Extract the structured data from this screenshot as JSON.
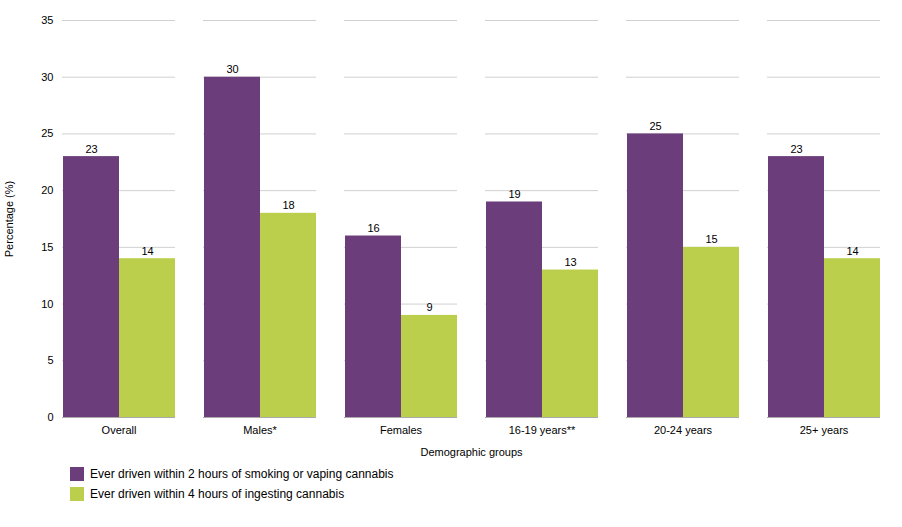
{
  "chart_data": {
    "type": "bar",
    "categories": [
      "Overall",
      "Males*",
      "Females",
      "16-19 years**",
      "20-24 years",
      "25+ years"
    ],
    "series": [
      {
        "name": "Ever driven within 2 hours of smoking or vaping cannabis",
        "color": "#6B3D7A",
        "values": [
          23,
          30,
          16,
          19,
          25,
          23
        ]
      },
      {
        "name": "Ever driven within 4 hours of ingesting cannabis",
        "color": "#BCCF4D",
        "values": [
          14,
          18,
          9,
          13,
          15,
          14
        ]
      }
    ],
    "xlabel": "Demographic groups",
    "ylabel": "Percentage (%)",
    "ylim": [
      0,
      35
    ],
    "yticks": [
      0,
      5,
      10,
      15,
      20,
      25,
      30,
      35
    ],
    "grid": true,
    "data_labels": true,
    "legend": "bottom"
  }
}
